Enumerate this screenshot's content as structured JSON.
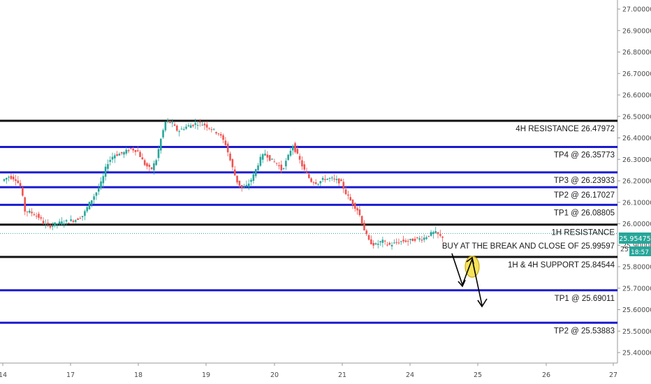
{
  "chart_data": {
    "type": "candlestick",
    "title": "",
    "xlabel": "",
    "ylabel": "",
    "ylim": [
      25.38,
      27.06
    ],
    "x_ticks": [
      {
        "label": "14",
        "x": 0
      },
      {
        "label": "17",
        "x": 1
      },
      {
        "label": "18",
        "x": 2
      },
      {
        "label": "19",
        "x": 3
      },
      {
        "label": "20",
        "x": 4
      },
      {
        "label": "21",
        "x": 5
      },
      {
        "label": "24",
        "x": 6
      },
      {
        "label": "25",
        "x": 7
      },
      {
        "label": "26",
        "x": 8
      },
      {
        "label": "27",
        "x": 9
      }
    ],
    "y_ticks": [
      "27.00000",
      "26.90000",
      "26.80000",
      "26.70000",
      "26.60000",
      "26.50000",
      "26.40000",
      "26.30000",
      "26.20000",
      "26.10000",
      "26.00000",
      "25.90000",
      "25.80000",
      "25.70000",
      "25.60000",
      "25.50000",
      "25.40000"
    ],
    "price_path": [
      [
        0.0,
        26.2
      ],
      [
        0.1,
        26.22
      ],
      [
        0.2,
        26.21
      ],
      [
        0.28,
        26.17
      ],
      [
        0.34,
        26.06
      ],
      [
        0.45,
        26.05
      ],
      [
        0.55,
        26.03
      ],
      [
        0.62,
        26.0
      ],
      [
        0.7,
        25.99
      ],
      [
        0.8,
        26.0
      ],
      [
        0.95,
        26.01
      ],
      [
        1.1,
        26.02
      ],
      [
        1.2,
        26.04
      ],
      [
        1.3,
        26.1
      ],
      [
        1.4,
        26.15
      ],
      [
        1.48,
        26.2
      ],
      [
        1.55,
        26.28
      ],
      [
        1.65,
        26.32
      ],
      [
        1.8,
        26.33
      ],
      [
        1.9,
        26.35
      ],
      [
        2.0,
        26.34
      ],
      [
        2.1,
        26.28
      ],
      [
        2.2,
        26.25
      ],
      [
        2.28,
        26.3
      ],
      [
        2.35,
        26.4
      ],
      [
        2.42,
        26.48
      ],
      [
        2.5,
        26.47
      ],
      [
        2.6,
        26.43
      ],
      [
        2.7,
        26.45
      ],
      [
        2.8,
        26.46
      ],
      [
        2.9,
        26.47
      ],
      [
        3.0,
        26.46
      ],
      [
        3.1,
        26.44
      ],
      [
        3.2,
        26.42
      ],
      [
        3.3,
        26.37
      ],
      [
        3.38,
        26.28
      ],
      [
        3.46,
        26.2
      ],
      [
        3.55,
        26.16
      ],
      [
        3.62,
        26.18
      ],
      [
        3.7,
        26.22
      ],
      [
        3.8,
        26.3
      ],
      [
        3.88,
        26.33
      ],
      [
        3.95,
        26.3
      ],
      [
        4.05,
        26.28
      ],
      [
        4.12,
        26.25
      ],
      [
        4.2,
        26.3
      ],
      [
        4.28,
        26.37
      ],
      [
        4.35,
        26.32
      ],
      [
        4.45,
        26.25
      ],
      [
        4.55,
        26.2
      ],
      [
        4.65,
        26.19
      ],
      [
        4.75,
        26.21
      ],
      [
        4.85,
        26.21
      ],
      [
        4.95,
        26.2
      ],
      [
        5.0,
        26.19
      ],
      [
        5.07,
        26.14
      ],
      [
        5.15,
        26.1
      ],
      [
        5.25,
        26.06
      ],
      [
        5.33,
        25.98
      ],
      [
        5.4,
        25.92
      ],
      [
        5.5,
        25.9
      ],
      [
        5.6,
        25.92
      ],
      [
        5.7,
        25.9
      ],
      [
        5.8,
        25.91
      ],
      [
        5.9,
        25.92
      ],
      [
        6.0,
        25.92
      ],
      [
        6.1,
        25.93
      ],
      [
        6.2,
        25.93
      ],
      [
        6.3,
        25.95
      ],
      [
        6.38,
        25.96
      ],
      [
        6.46,
        25.94
      ]
    ],
    "last_price": "25.95475",
    "countdown": "18:57",
    "levels": [
      {
        "label": "4H RESISTANCE 26.47972",
        "value": 26.47972,
        "color": "#111111"
      },
      {
        "label": "TP4 @ 26.35773",
        "value": 26.35773,
        "color": "#1a1ad0"
      },
      {
        "label": "TP3 @ 26.23933",
        "value": 26.23933,
        "color": "#1a1ad0"
      },
      {
        "label": "TP2 @ 26.17027",
        "value": 26.17027,
        "color": "#1a1ad0"
      },
      {
        "label": "TP1 @ 26.08805",
        "value": 26.08805,
        "color": "#1a1ad0"
      },
      {
        "label": "1H RESISTANCE",
        "value": 25.99597,
        "color": "#111111"
      },
      {
        "label": "1H & 4H SUPPORT 25.84544",
        "value": 25.84544,
        "color": "#111111"
      },
      {
        "label": "TP1 @ 25.69011",
        "value": 25.69011,
        "color": "#1a1ad0"
      },
      {
        "label": "TP2 @ 25.53883",
        "value": 25.53883,
        "color": "#1a1ad0"
      }
    ],
    "annotations": [
      {
        "text": "BUY AT THE BREAK AND CLOSE OF 25.99597"
      }
    ],
    "colors": {
      "up": "#26a69a",
      "down": "#ef5350",
      "accent_label": "#26a69a"
    }
  }
}
